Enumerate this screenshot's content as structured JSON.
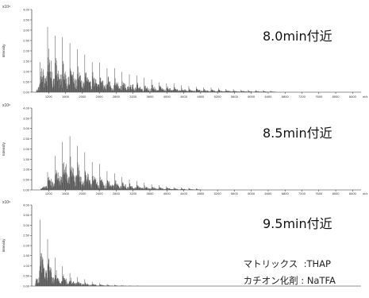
{
  "chart_data": [
    {
      "type": "bar",
      "tag": "8.0min付近",
      "exponent_label": "x10⁸",
      "ylabel": "Intensity",
      "xunit": "m/z",
      "xlim": [
        800,
        8600
      ],
      "ylim": [
        0,
        4.0
      ],
      "xticks": [
        "1200",
        "1600",
        "2000",
        "2400",
        "2800",
        "3200",
        "3600",
        "4000",
        "4400",
        "4800",
        "5200",
        "5600",
        "6000",
        "6400",
        "6800",
        "7200",
        "7600",
        "8000",
        "8400"
      ],
      "yticks": [
        "0.00",
        "0.50",
        "1.00",
        "1.50",
        "2.00",
        "2.50",
        "3.00",
        "3.50",
        "4.00"
      ],
      "envelope": {
        "rise_start": 900,
        "peak_mz": 1150,
        "peak_value": 3.7,
        "decay_mz": 1400,
        "tail_end": 6600
      },
      "color": "#555555"
    },
    {
      "type": "bar",
      "tag": "8.5min付近",
      "exponent_label": "x10⁸",
      "ylabel": "Intensity",
      "xunit": "m/z",
      "xlim": [
        800,
        8600
      ],
      "ylim": [
        0,
        4.0
      ],
      "xticks": [
        "1200",
        "1600",
        "2000",
        "2400",
        "2800",
        "3200",
        "3600",
        "4000",
        "4400",
        "4800",
        "5200",
        "5600",
        "6000",
        "6400",
        "6800",
        "7200",
        "7600",
        "8000",
        "8400"
      ],
      "yticks": [
        "0.00",
        "0.50",
        "1.00",
        "1.50",
        "2.00",
        "2.50",
        "3.00",
        "3.50",
        "4.00"
      ],
      "envelope": {
        "rise_start": 1000,
        "peak_mz": 1650,
        "peak_value": 3.1,
        "decay_mz": 850,
        "tail_end": 4800
      },
      "color": "#555555"
    },
    {
      "type": "bar",
      "tag": "9.5min付近",
      "exponent_label": "x10⁸",
      "ylabel": "Intensity",
      "xunit": "m/z",
      "xlim": [
        800,
        8600
      ],
      "ylim": [
        0,
        4.0
      ],
      "xticks": [],
      "yticks": [
        "0.00",
        "0.50",
        "1.00",
        "1.50",
        "2.00",
        "2.50",
        "3.00",
        "3.50",
        "4.00"
      ],
      "envelope": {
        "rise_start": 880,
        "peak_mz": 1000,
        "peak_value": 3.6,
        "decay_mz": 450,
        "tail_end": 3600
      },
      "color": "#555555"
    }
  ],
  "conditions": [
    {
      "label": "マトリックス",
      "value": "THAP"
    },
    {
      "label": "カチオン化剤",
      "value": "NaTFA"
    }
  ]
}
